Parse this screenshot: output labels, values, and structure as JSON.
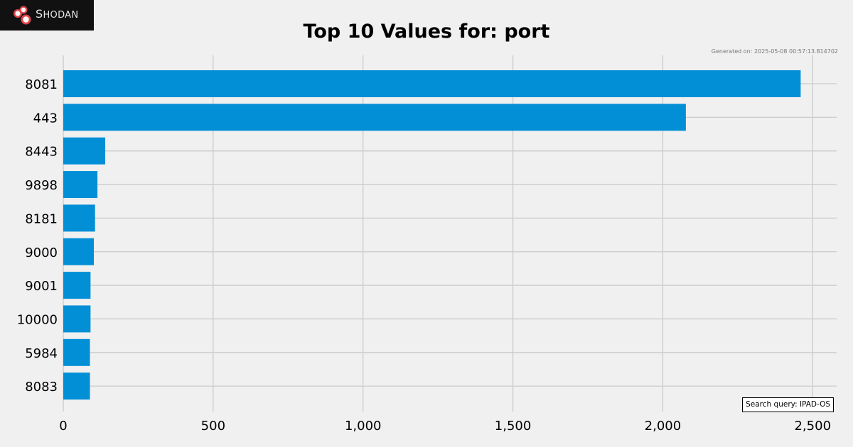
{
  "logo": {
    "text_first": "S",
    "text_rest": "HODAN"
  },
  "generated_text": "Generated on: 2025-05-08 00:57:13.814702",
  "search_query": "Search query: IPAD-OS",
  "colors": {
    "background": "#f0f0f0",
    "bar": "#038fd6",
    "grid": "#cbcbcb",
    "logo_bg": "#111111",
    "logo_accent": "#e0454c"
  },
  "chart_data": {
    "type": "bar",
    "orientation": "horizontal",
    "title": "Top 10 Values for: port",
    "xlabel": "",
    "ylabel": "",
    "categories": [
      "8081",
      "443",
      "8443",
      "9898",
      "8181",
      "9000",
      "9001",
      "10000",
      "5984",
      "8083"
    ],
    "values": [
      2460,
      2077,
      140,
      114,
      106,
      102,
      91,
      91,
      89,
      89
    ],
    "xlim": [
      0,
      2580
    ],
    "xticks": [
      0,
      500,
      1000,
      1500,
      2000,
      2500
    ],
    "xtick_labels": [
      "0",
      "500",
      "1,000",
      "1,500",
      "2,000",
      "2,500"
    ],
    "grid": true
  }
}
